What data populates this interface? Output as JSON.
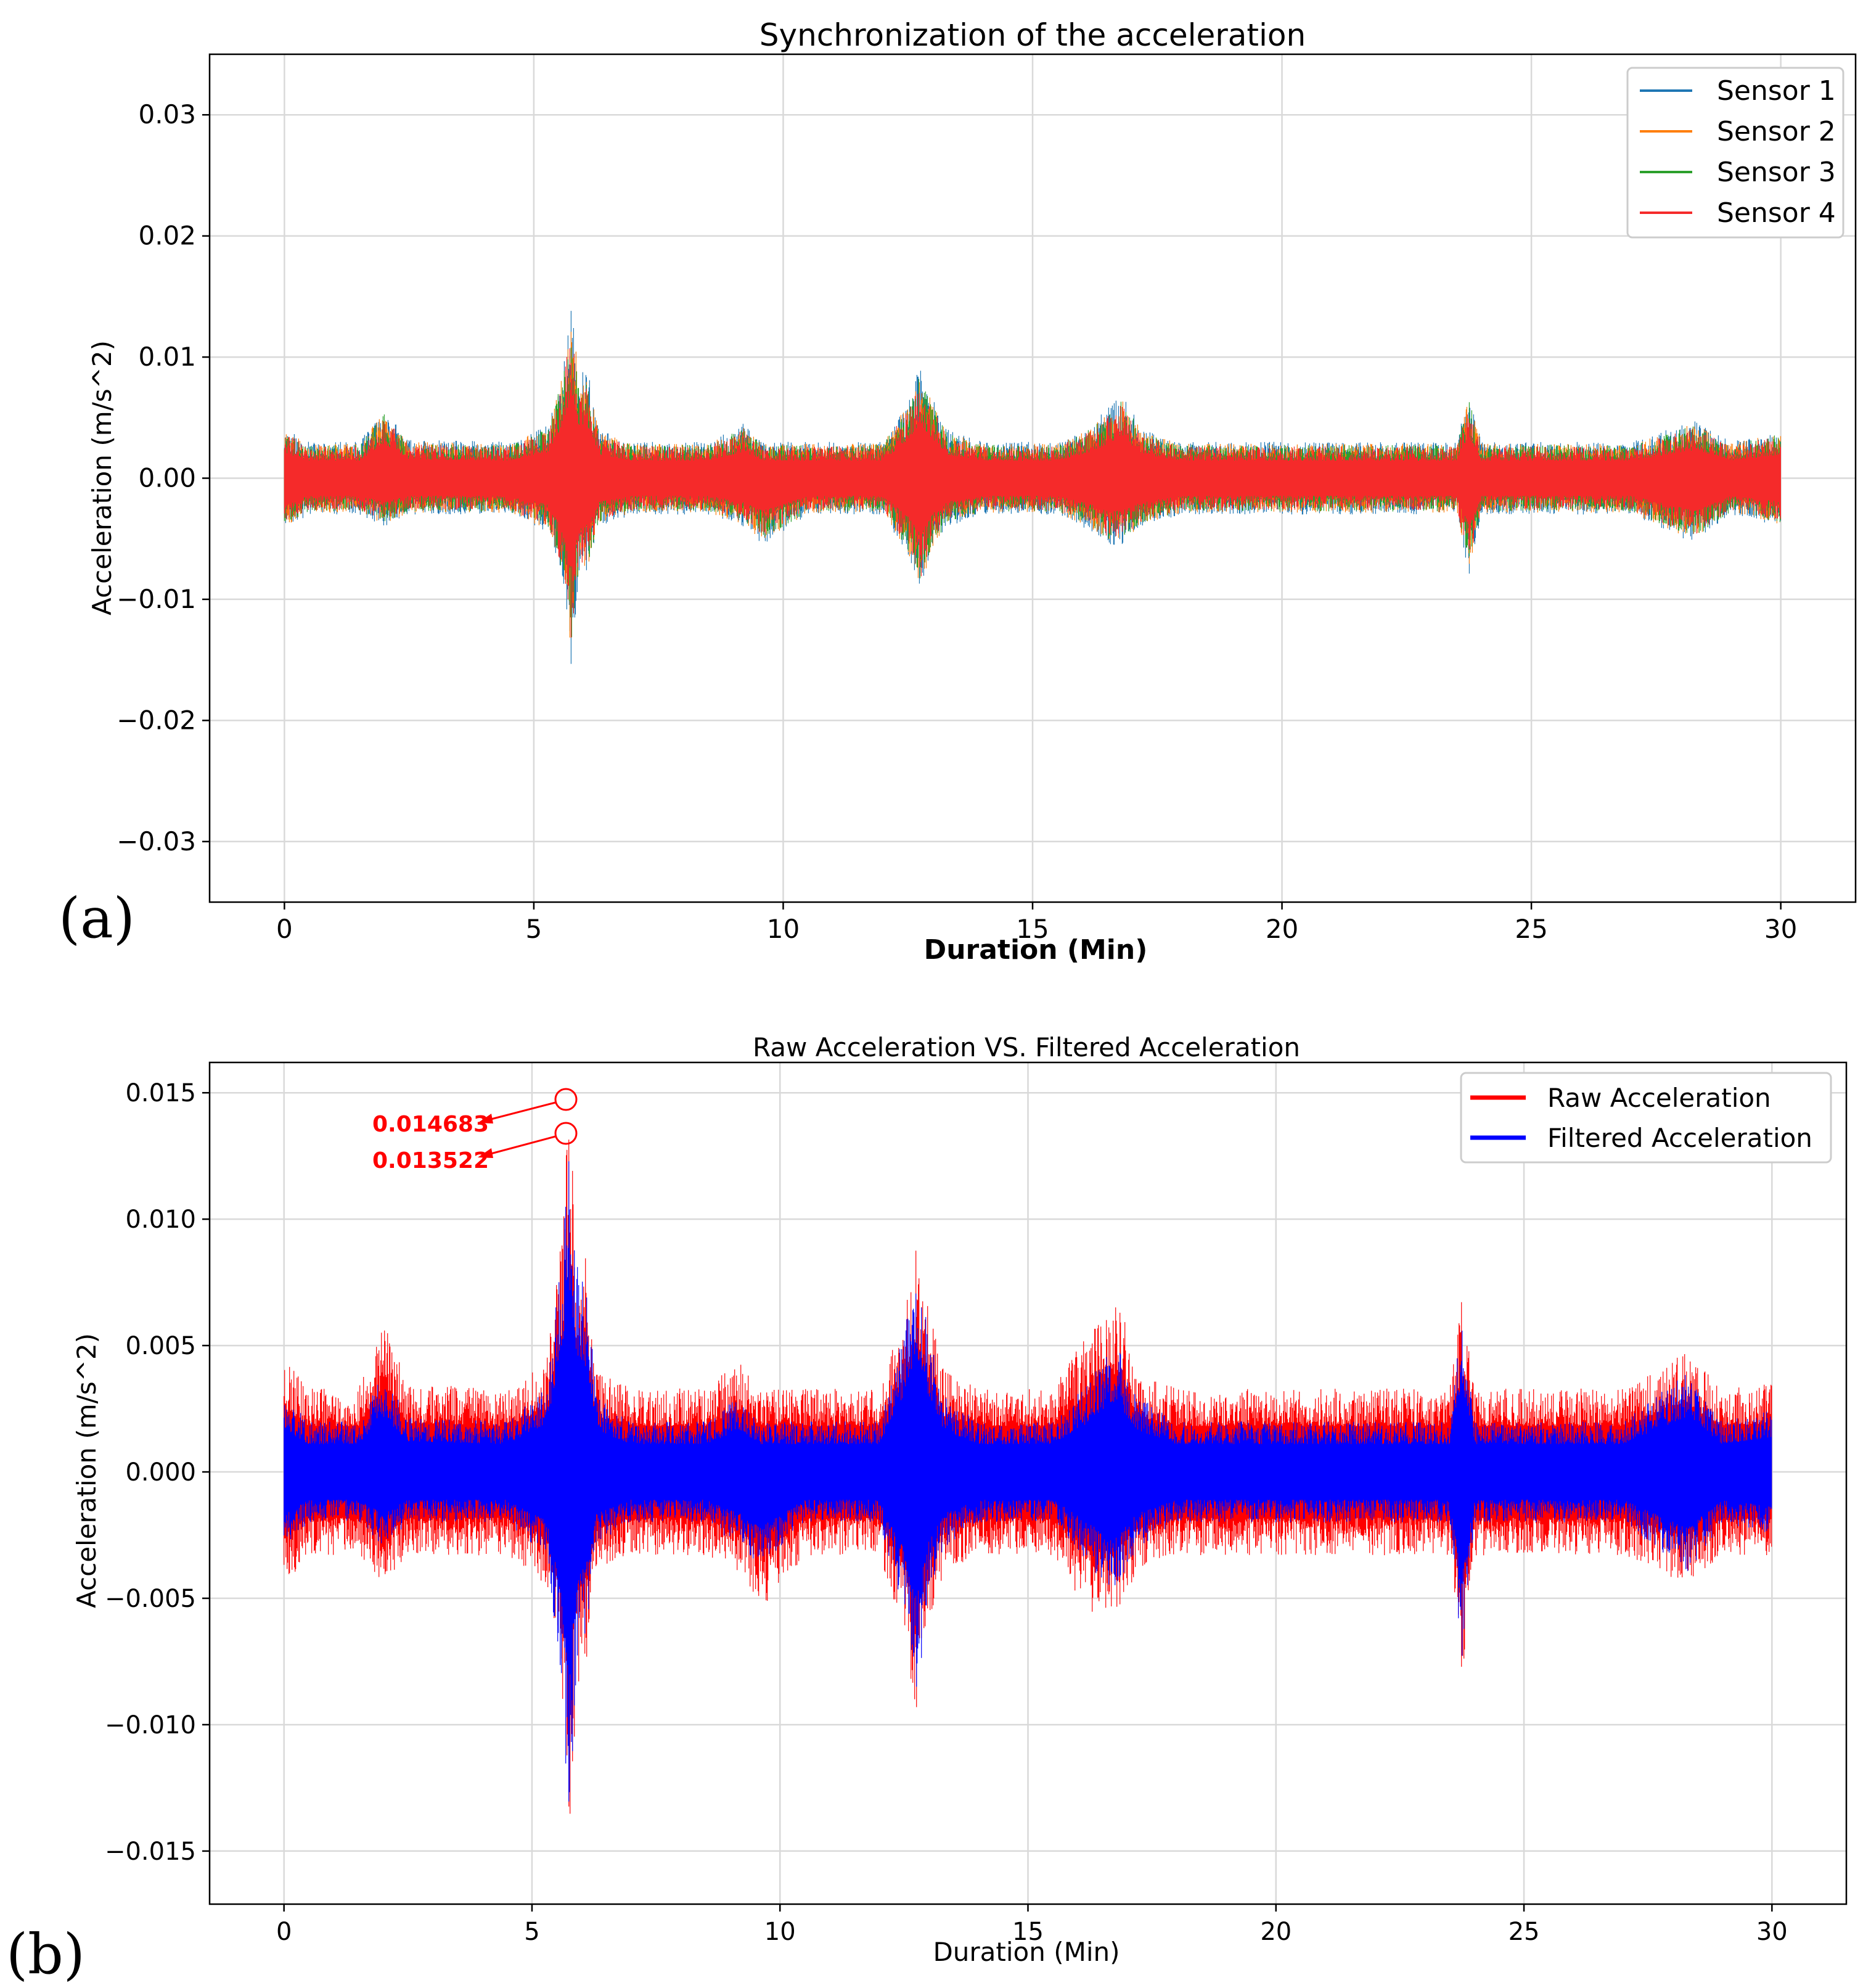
{
  "chart_data": [
    {
      "panel": "(a)",
      "type": "line",
      "title": "Synchronization of the acceleration",
      "xlabel": "Duration (Min)",
      "ylabel": "Acceleration (m/s^2)",
      "xlim": [
        -1.5,
        31.5
      ],
      "ylim": [
        -0.035,
        0.035
      ],
      "x_ticks": [
        0,
        5,
        10,
        15,
        20,
        25,
        30
      ],
      "x_tick_labels": [
        "0",
        "5",
        "10",
        "15",
        "20",
        "25",
        "30"
      ],
      "y_ticks": [
        0.03,
        0.02,
        0.01,
        0.0,
        -0.01,
        -0.02,
        -0.03
      ],
      "y_tick_labels": [
        "0.03",
        "0.02",
        "0.01",
        "0.00",
        "−0.01",
        "−0.02",
        "−0.03"
      ],
      "grid": true,
      "legend_position": "top-right",
      "series": [
        {
          "name": "Sensor 1",
          "color": "#1f77b4"
        },
        {
          "name": "Sensor 2",
          "color": "#ff7f0e"
        },
        {
          "name": "Sensor 3",
          "color": "#2ca02c"
        },
        {
          "name": "Sensor 4",
          "color": "#f52a2a"
        }
      ],
      "envelope": {
        "x": [
          0,
          0.5,
          1.5,
          2.0,
          2.5,
          4.5,
          5.3,
          5.6,
          5.75,
          5.9,
          6.1,
          6.3,
          7.0,
          8.5,
          9.2,
          9.6,
          10.5,
          12.0,
          12.5,
          12.75,
          13.0,
          13.3,
          14.0,
          15.5,
          16.2,
          16.5,
          16.8,
          17.2,
          18.0,
          20.0,
          22.0,
          23.5,
          23.75,
          24.0,
          25.0,
          27.0,
          28.3,
          29.0,
          30.0
        ],
        "y_max": [
          0.0042,
          0.003,
          0.003,
          0.0058,
          0.0032,
          0.003,
          0.0045,
          0.0095,
          0.0147,
          0.009,
          0.0085,
          0.004,
          0.003,
          0.003,
          0.0045,
          0.003,
          0.003,
          0.003,
          0.0065,
          0.0093,
          0.0065,
          0.004,
          0.003,
          0.003,
          0.0045,
          0.0058,
          0.007,
          0.004,
          0.003,
          0.003,
          0.003,
          0.003,
          0.007,
          0.003,
          0.003,
          0.003,
          0.0048,
          0.003,
          0.004
        ],
        "y_min": [
          -0.0042,
          -0.003,
          -0.003,
          -0.004,
          -0.003,
          -0.003,
          -0.0045,
          -0.009,
          -0.0155,
          -0.0085,
          -0.0075,
          -0.004,
          -0.003,
          -0.003,
          -0.004,
          -0.0055,
          -0.003,
          -0.003,
          -0.0065,
          -0.0095,
          -0.006,
          -0.004,
          -0.003,
          -0.003,
          -0.0045,
          -0.0055,
          -0.0055,
          -0.004,
          -0.003,
          -0.003,
          -0.003,
          -0.003,
          -0.008,
          -0.003,
          -0.003,
          -0.003,
          -0.0055,
          -0.003,
          -0.004
        ]
      }
    },
    {
      "panel": "(b)",
      "type": "line",
      "title": "Raw Acceleration VS. Filtered Acceleration",
      "xlabel": "Duration (Min)",
      "ylabel": "Acceleration (m/s^2)",
      "xlim": [
        -1.5,
        31.5
      ],
      "ylim": [
        -0.0171,
        0.0162
      ],
      "x_ticks": [
        0,
        5,
        10,
        15,
        20,
        25,
        30
      ],
      "x_tick_labels": [
        "0",
        "5",
        "10",
        "15",
        "20",
        "25",
        "30"
      ],
      "y_ticks": [
        0.015,
        0.01,
        0.005,
        0.0,
        -0.005,
        -0.01,
        -0.015
      ],
      "y_tick_labels": [
        "0.015",
        "0.010",
        "0.005",
        "0.000",
        "−0.005",
        "−0.010",
        "−0.015"
      ],
      "grid": true,
      "legend_position": "top-right",
      "series": [
        {
          "name": "Raw Acceleration",
          "color": "#ff0000"
        },
        {
          "name": "Filtered Acceleration",
          "color": "#0000ff"
        }
      ],
      "annotations": [
        {
          "text": "0.014683",
          "x": 5.75,
          "y": 0.014683,
          "color": "#ff0000"
        },
        {
          "text": "0.013522",
          "x": 5.75,
          "y": 0.013522,
          "color": "#ff0000"
        }
      ],
      "envelope_raw": {
        "x": [
          0,
          0.5,
          1.5,
          2.0,
          2.5,
          4.5,
          5.3,
          5.6,
          5.75,
          5.9,
          6.1,
          6.3,
          7.0,
          8.5,
          9.2,
          9.6,
          10.5,
          12.0,
          12.5,
          12.75,
          13.0,
          13.3,
          14.0,
          15.5,
          16.2,
          16.5,
          16.8,
          17.2,
          18.0,
          20.0,
          22.0,
          23.5,
          23.75,
          24.0,
          25.0,
          27.0,
          28.3,
          29.0,
          30.0
        ],
        "y_max": [
          0.0045,
          0.0033,
          0.0033,
          0.006,
          0.0035,
          0.0033,
          0.0045,
          0.0095,
          0.0147,
          0.009,
          0.0085,
          0.004,
          0.0033,
          0.0033,
          0.0045,
          0.0033,
          0.0033,
          0.0033,
          0.0065,
          0.0094,
          0.0065,
          0.004,
          0.0033,
          0.0033,
          0.0055,
          0.006,
          0.0072,
          0.004,
          0.0033,
          0.0033,
          0.0033,
          0.0033,
          0.007,
          0.0033,
          0.0033,
          0.0033,
          0.0048,
          0.0033,
          0.0035
        ],
        "y_min": [
          -0.0045,
          -0.0033,
          -0.0033,
          -0.0045,
          -0.0033,
          -0.0033,
          -0.0045,
          -0.009,
          -0.0155,
          -0.0085,
          -0.0075,
          -0.004,
          -0.0033,
          -0.0033,
          -0.004,
          -0.0055,
          -0.0033,
          -0.0033,
          -0.0065,
          -0.0095,
          -0.006,
          -0.004,
          -0.0033,
          -0.0033,
          -0.0055,
          -0.0056,
          -0.0055,
          -0.004,
          -0.0033,
          -0.0033,
          -0.0033,
          -0.0033,
          -0.0082,
          -0.0033,
          -0.0033,
          -0.0033,
          -0.0045,
          -0.0033,
          -0.0033
        ]
      },
      "envelope_filtered": {
        "x": [
          0,
          0.5,
          1.5,
          2.0,
          2.5,
          4.5,
          5.3,
          5.6,
          5.75,
          5.9,
          6.1,
          6.3,
          7.0,
          8.5,
          9.2,
          9.6,
          10.5,
          12.0,
          12.5,
          12.75,
          13.0,
          13.3,
          14.0,
          15.5,
          16.2,
          16.5,
          16.8,
          17.2,
          18.0,
          20.0,
          22.0,
          23.5,
          23.75,
          24.0,
          25.0,
          27.0,
          28.3,
          29.0,
          30.0
        ],
        "y_max": [
          0.003,
          0.002,
          0.002,
          0.004,
          0.0022,
          0.002,
          0.0035,
          0.0085,
          0.0135,
          0.0085,
          0.0075,
          0.003,
          0.002,
          0.002,
          0.003,
          0.002,
          0.002,
          0.002,
          0.0055,
          0.0085,
          0.0055,
          0.003,
          0.002,
          0.002,
          0.0035,
          0.0045,
          0.005,
          0.003,
          0.002,
          0.002,
          0.002,
          0.002,
          0.0065,
          0.002,
          0.002,
          0.002,
          0.004,
          0.002,
          0.0025
        ],
        "y_min": [
          -0.003,
          -0.002,
          -0.002,
          -0.003,
          -0.002,
          -0.002,
          -0.0035,
          -0.0085,
          -0.0145,
          -0.0075,
          -0.0065,
          -0.003,
          -0.002,
          -0.002,
          -0.003,
          -0.004,
          -0.002,
          -0.002,
          -0.0055,
          -0.009,
          -0.005,
          -0.003,
          -0.002,
          -0.002,
          -0.0035,
          -0.0045,
          -0.0045,
          -0.003,
          -0.002,
          -0.002,
          -0.002,
          -0.002,
          -0.0075,
          -0.002,
          -0.002,
          -0.002,
          -0.004,
          -0.002,
          -0.0025
        ]
      }
    }
  ]
}
